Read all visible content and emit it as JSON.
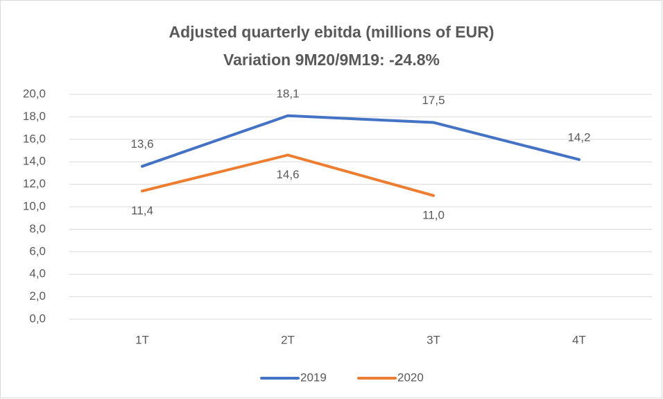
{
  "chart_data": {
    "type": "line",
    "title": "Adjusted quarterly ebitda (millions of EUR)",
    "subtitle": "Variation 9M20/9M19: -24.8%",
    "categories": [
      "1T",
      "2T",
      "3T",
      "4T"
    ],
    "series": [
      {
        "name": "2019",
        "color": "#4472c4",
        "values": [
          13.6,
          18.1,
          17.5,
          14.2
        ],
        "value_labels": [
          "13,6",
          "18,1",
          "17,5",
          "14,2"
        ]
      },
      {
        "name": "2020",
        "color": "#ed7d31",
        "values": [
          11.4,
          14.6,
          11.0,
          null
        ],
        "value_labels": [
          "11,4",
          "14,6",
          "11,0",
          null
        ]
      }
    ],
    "ylim": [
      0,
      20
    ],
    "yticks": [
      {
        "value": 0,
        "label": "0,0"
      },
      {
        "value": 2,
        "label": "2,0"
      },
      {
        "value": 4,
        "label": "4,0"
      },
      {
        "value": 6,
        "label": "6,0"
      },
      {
        "value": 8,
        "label": "8,0"
      },
      {
        "value": 10,
        "label": "10,0"
      },
      {
        "value": 12,
        "label": "12,0"
      },
      {
        "value": 14,
        "label": "14,0"
      },
      {
        "value": 16,
        "label": "16,0"
      },
      {
        "value": 18,
        "label": "18,0"
      },
      {
        "value": 20,
        "label": "20,0"
      }
    ],
    "grid": true,
    "legend": "bottom"
  }
}
